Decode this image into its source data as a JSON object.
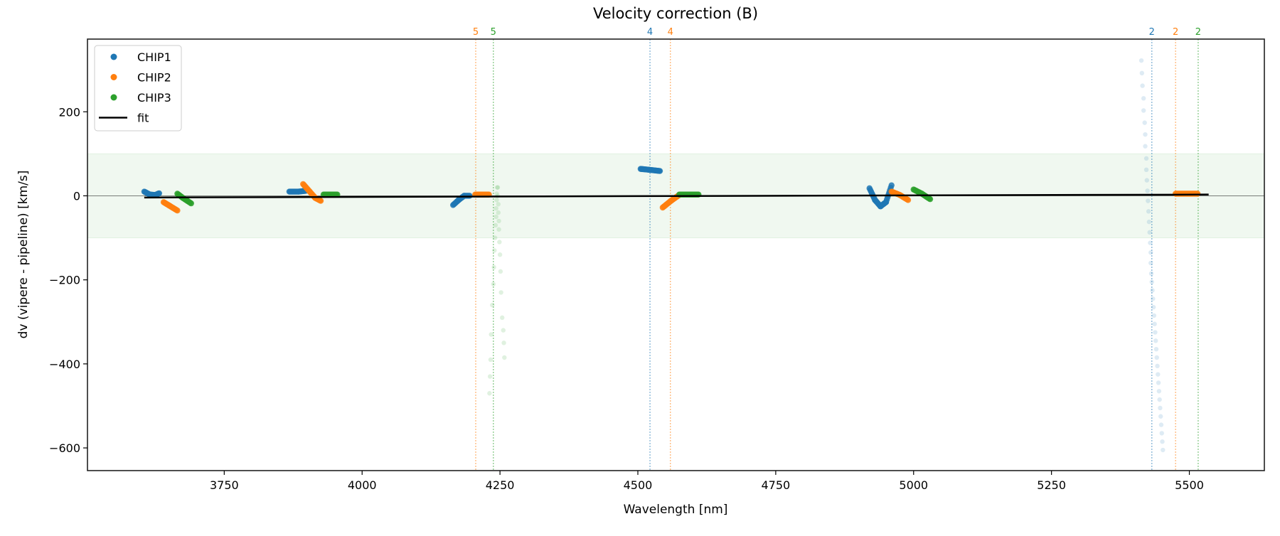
{
  "chart_data": {
    "type": "scatter",
    "title": "Velocity correction (B)",
    "xlabel": "Wavelength [nm]",
    "ylabel": "dv (vipere - pipeline) [km/s]",
    "xlim": [
      3502,
      5636
    ],
    "ylim": [
      -654,
      373
    ],
    "xticks": [
      3750,
      4000,
      4250,
      4500,
      4750,
      5000,
      5250,
      5500
    ],
    "yticks": [
      -600,
      -400,
      -200,
      0,
      200
    ],
    "grid": false,
    "legend_position": "top-left",
    "band": {
      "y_low": -100,
      "y_high": 100,
      "color": "#2ca02c"
    },
    "series": [
      {
        "name": "CHIP1",
        "color": "#1f77b4",
        "segments": [
          [
            [
              3605,
              10
            ],
            [
              3615,
              3
            ],
            [
              3625,
              2
            ],
            [
              3632,
              6
            ]
          ],
          [
            [
              3868,
              10
            ],
            [
              3885,
              10
            ],
            [
              3898,
              12
            ]
          ],
          [
            [
              4165,
              -22
            ],
            [
              4175,
              -10
            ],
            [
              4185,
              0
            ],
            [
              4195,
              0
            ]
          ],
          [
            [
              4505,
              64
            ],
            [
              4520,
              62
            ],
            [
              4540,
              59
            ]
          ],
          [
            [
              4920,
              18
            ],
            [
              4930,
              -10
            ],
            [
              4940,
              -25
            ],
            [
              4950,
              -15
            ],
            [
              4960,
              25
            ]
          ]
        ],
        "outliers": [
          [
            5413,
            322
          ],
          [
            5414,
            292
          ],
          [
            5415,
            262
          ],
          [
            5417,
            232
          ],
          [
            5417,
            203
          ],
          [
            5419,
            174
          ],
          [
            5420,
            146
          ],
          [
            5420,
            118
          ],
          [
            5422,
            89
          ],
          [
            5422,
            62
          ],
          [
            5423,
            37
          ],
          [
            5424,
            12
          ],
          [
            5425,
            -12
          ],
          [
            5426,
            -37
          ],
          [
            5427,
            -62
          ],
          [
            5428,
            -87
          ],
          [
            5429,
            -112
          ],
          [
            5430,
            -135
          ],
          [
            5430,
            -160
          ],
          [
            5431,
            -185
          ],
          [
            5432,
            -205
          ],
          [
            5433,
            -225
          ],
          [
            5434,
            -245
          ],
          [
            5435,
            -265
          ],
          [
            5436,
            -285
          ],
          [
            5437,
            -305
          ],
          [
            5438,
            -325
          ],
          [
            5439,
            -345
          ],
          [
            5440,
            -365
          ],
          [
            5441,
            -385
          ],
          [
            5442,
            -405
          ],
          [
            5443,
            -425
          ],
          [
            5444,
            -445
          ],
          [
            5445,
            -465
          ],
          [
            5446,
            -485
          ],
          [
            5447,
            -505
          ],
          [
            5448,
            -525
          ],
          [
            5449,
            -545
          ],
          [
            5450,
            -565
          ],
          [
            5451,
            -585
          ],
          [
            5452,
            -605
          ]
        ]
      },
      {
        "name": "CHIP2",
        "color": "#ff7f0e",
        "segments": [
          [
            [
              3640,
              -15
            ],
            [
              3650,
              -23
            ],
            [
              3665,
              -35
            ]
          ],
          [
            [
              3893,
              28
            ],
            [
              3905,
              10
            ],
            [
              3915,
              -5
            ],
            [
              3925,
              -12
            ]
          ],
          [
            [
              4205,
              3
            ],
            [
              4230,
              3
            ]
          ],
          [
            [
              4545,
              -28
            ],
            [
              4560,
              -12
            ],
            [
              4575,
              2
            ]
          ],
          [
            [
              4960,
              10
            ],
            [
              4975,
              2
            ],
            [
              4990,
              -10
            ]
          ],
          [
            [
              5475,
              5
            ],
            [
              5515,
              5
            ]
          ]
        ],
        "outliers": []
      },
      {
        "name": "CHIP3",
        "color": "#2ca02c",
        "segments": [
          [
            [
              3665,
              5
            ],
            [
              3675,
              -5
            ],
            [
              3690,
              -18
            ]
          ],
          [
            [
              3930,
              3
            ],
            [
              3955,
              3
            ]
          ],
          [
            [
              4575,
              3
            ],
            [
              4610,
              3
            ]
          ],
          [
            [
              5000,
              15
            ],
            [
              5015,
              5
            ],
            [
              5030,
              -8
            ]
          ]
        ],
        "outliers": [
          [
            4245,
            20
          ],
          [
            4244,
            5
          ],
          [
            4244,
            -10
          ],
          [
            4243,
            -30
          ],
          [
            4243,
            -50
          ],
          [
            4242,
            -70
          ],
          [
            4241,
            -100
          ],
          [
            4240,
            -130
          ],
          [
            4239,
            -170
          ],
          [
            4238,
            -210
          ],
          [
            4236,
            -260
          ],
          [
            4234,
            -330
          ],
          [
            4233,
            -390
          ],
          [
            4232,
            -430
          ],
          [
            4231,
            -470
          ],
          [
            4246,
            20
          ],
          [
            4246,
            0
          ],
          [
            4247,
            -20
          ],
          [
            4247,
            -40
          ],
          [
            4248,
            -60
          ],
          [
            4248,
            -80
          ],
          [
            4249,
            -110
          ],
          [
            4250,
            -140
          ],
          [
            4251,
            -180
          ],
          [
            4252,
            -230
          ],
          [
            4254,
            -290
          ],
          [
            4256,
            -320
          ],
          [
            4257,
            -350
          ],
          [
            4258,
            -385
          ]
        ]
      }
    ],
    "fit": {
      "name": "fit",
      "color": "#000000",
      "points": [
        [
          3605,
          -4
        ],
        [
          5535,
          3
        ]
      ]
    },
    "markers": [
      {
        "x": 4206,
        "label": "5",
        "color": "#ff7f0e"
      },
      {
        "x": 4238,
        "label": "5",
        "color": "#2ca02c"
      },
      {
        "x": 4522,
        "label": "4",
        "color": "#1f77b4"
      },
      {
        "x": 4559,
        "label": "4",
        "color": "#ff7f0e"
      },
      {
        "x": 5432,
        "label": "2",
        "color": "#1f77b4"
      },
      {
        "x": 5475,
        "label": "2",
        "color": "#ff7f0e"
      },
      {
        "x": 5516,
        "label": "2",
        "color": "#2ca02c"
      }
    ]
  }
}
